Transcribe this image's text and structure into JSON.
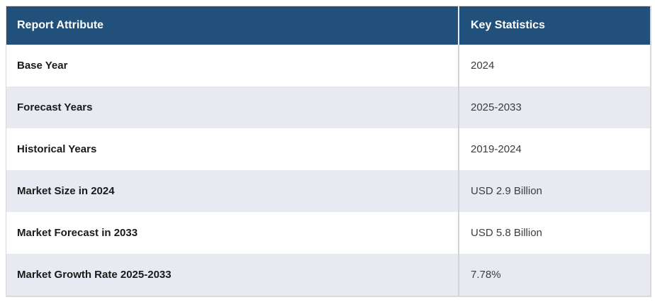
{
  "table": {
    "columns": [
      {
        "label": "Report Attribute"
      },
      {
        "label": "Key Statistics"
      }
    ],
    "rows": [
      {
        "attribute": "Base Year",
        "value": "2024"
      },
      {
        "attribute": "Forecast Years",
        "value": "2025-2033"
      },
      {
        "attribute": "Historical Years",
        "value": "2019-2024"
      },
      {
        "attribute": "Market Size in 2024",
        "value": "USD 2.9 Billion"
      },
      {
        "attribute": "Market Forecast in 2033",
        "value": "USD 5.8 Billion"
      },
      {
        "attribute": "Market Growth Rate 2025-2033",
        "value": "7.78%"
      }
    ],
    "colors": {
      "header_bg": "#21507A",
      "header_text": "#FFFFFF",
      "stripe_bg": "#E8EAF2",
      "row_bg": "#FFFFFF",
      "border": "#D9D9D9"
    }
  }
}
